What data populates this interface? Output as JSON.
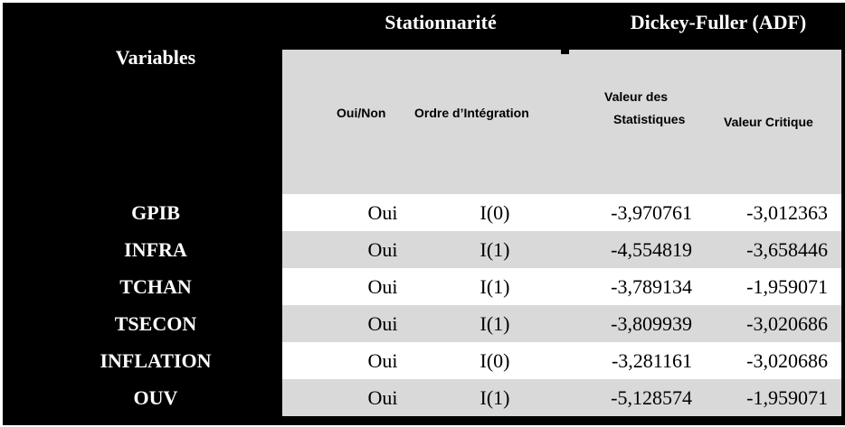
{
  "table": {
    "top_header": {
      "stationnarite": "Stationnarité",
      "dickey_fuller": "Dickey-Fuller (ADF)"
    },
    "variables_label": "Variables",
    "sub_headers": {
      "oui_non": "Oui/Non",
      "ordre_integration": "Ordre d’Intégration",
      "valeur_des": "Valeur des",
      "statistiques": "Statistiques",
      "valeur_critique": "Valeur Critique"
    },
    "rows": [
      {
        "variable": "GPIB",
        "stationnaire": "Oui",
        "ordre": "I(0)",
        "valeur_statistique": "-3,970761",
        "valeur_critique": "-3,012363"
      },
      {
        "variable": "INFRA",
        "stationnaire": "Oui",
        "ordre": "I(1)",
        "valeur_statistique": "-4,554819",
        "valeur_critique": "-3,658446"
      },
      {
        "variable": "TCHAN",
        "stationnaire": "Oui",
        "ordre": "I(1)",
        "valeur_statistique": "-3,789134",
        "valeur_critique": "-1,959071"
      },
      {
        "variable": "TSECON",
        "stationnaire": "Oui",
        "ordre": "I(1)",
        "valeur_statistique": "-3,809939",
        "valeur_critique": "-3,020686"
      },
      {
        "variable": "INFLATION",
        "stationnaire": "Oui",
        "ordre": "I(0)",
        "valeur_statistique": "-3,281161",
        "valeur_critique": "-3,020686"
      },
      {
        "variable": "OUV",
        "stationnaire": "Oui",
        "ordre": "I(1)",
        "valeur_statistique": "-5,128574",
        "valeur_critique": "-1,959071"
      }
    ],
    "colors": {
      "table_bg": "#000000",
      "header_text": "#ffffff",
      "shaded_band_bg": "#d9d9d9",
      "white_row_bg": "#ffffff",
      "body_text": "#000000"
    }
  }
}
